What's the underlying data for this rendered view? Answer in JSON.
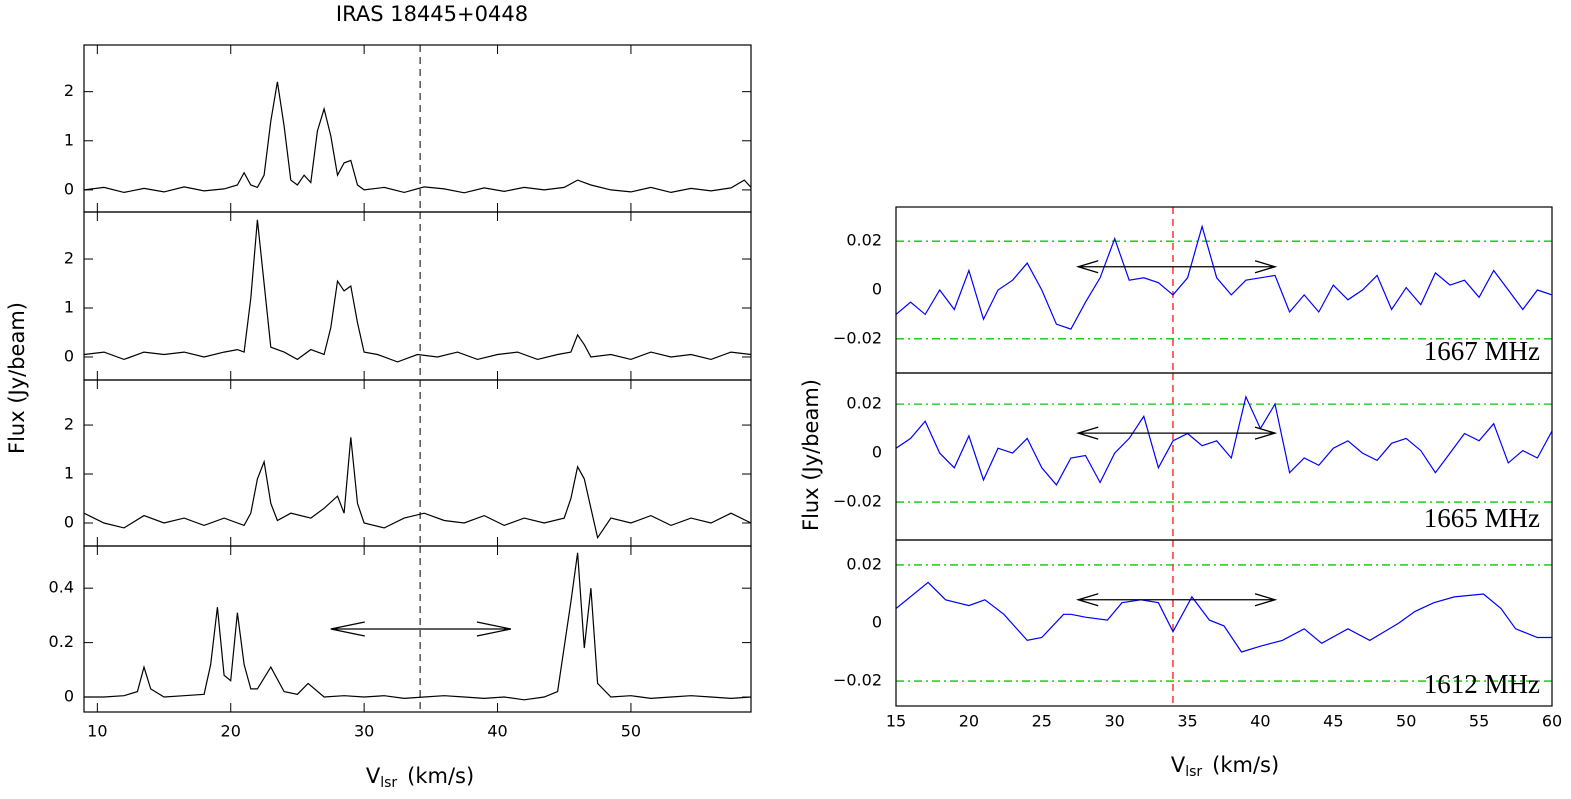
{
  "chart_data": [
    {
      "type": "line",
      "title": "IRAS 18445+0448",
      "xlabel": {
        "text": "V",
        "sub": "lsr",
        "unit": "(km/s)"
      },
      "ylabel": "Flux (Jy/beam)",
      "xlim": [
        9,
        59
      ],
      "xticks": [
        10,
        20,
        30,
        40,
        50
      ],
      "vline": 34.2,
      "color": "#000000",
      "vline_color": "#555555",
      "tick_marks": true,
      "panels": [
        {
          "ylim": [
            -0.45,
            2.95
          ],
          "yticks": [
            0,
            1,
            2
          ],
          "x": [
            9,
            10.5,
            12,
            13.5,
            15,
            16.5,
            18,
            19.5,
            20.5,
            21,
            21.5,
            22,
            22.5,
            23,
            23.5,
            24,
            24.5,
            25,
            25.5,
            26,
            26.5,
            27,
            27.5,
            28,
            28.5,
            29,
            29.5,
            30,
            31.5,
            33,
            34.5,
            36,
            37.5,
            39,
            40.5,
            42,
            43.5,
            45,
            46,
            47,
            48.5,
            50,
            51.5,
            53,
            54.5,
            56,
            57.5,
            58.5,
            59
          ],
          "values": [
            0.0,
            0.05,
            -0.05,
            0.03,
            -0.04,
            0.06,
            -0.02,
            0.02,
            0.1,
            0.35,
            0.1,
            0.05,
            0.3,
            1.4,
            2.2,
            1.3,
            0.2,
            0.1,
            0.3,
            0.15,
            1.2,
            1.65,
            1.1,
            0.3,
            0.55,
            0.6,
            0.1,
            0.0,
            0.05,
            -0.05,
            0.06,
            0.02,
            -0.06,
            0.04,
            -0.03,
            0.05,
            0.0,
            0.05,
            0.2,
            0.1,
            0.0,
            -0.04,
            0.05,
            -0.05,
            0.03,
            -0.02,
            0.04,
            0.2,
            0.05
          ]
        },
        {
          "ylim": [
            -0.47,
            2.96
          ],
          "yticks": [
            0,
            1,
            2
          ],
          "x": [
            9,
            10.5,
            12,
            13.5,
            15,
            16.5,
            18,
            19.5,
            20.5,
            21,
            21.5,
            22,
            22.5,
            23,
            24,
            25,
            26,
            27,
            27.5,
            28,
            28.5,
            29,
            29.5,
            30,
            31,
            32.5,
            34,
            35.5,
            37,
            38.5,
            40,
            41.5,
            43,
            44.5,
            45.5,
            46,
            46.5,
            47,
            48.5,
            50,
            51.5,
            53,
            54.5,
            56,
            57.5,
            59
          ],
          "values": [
            0.05,
            0.1,
            -0.05,
            0.1,
            0.05,
            0.1,
            0.0,
            0.1,
            0.15,
            0.1,
            1.2,
            2.8,
            1.5,
            0.2,
            0.1,
            -0.05,
            0.15,
            0.05,
            0.6,
            1.55,
            1.35,
            1.45,
            0.7,
            0.1,
            0.05,
            -0.1,
            0.05,
            0.0,
            0.1,
            -0.05,
            0.05,
            0.1,
            -0.05,
            0.05,
            0.1,
            0.45,
            0.25,
            0.0,
            0.05,
            -0.05,
            0.1,
            0.0,
            0.05,
            -0.05,
            0.1,
            0.05
          ]
        },
        {
          "ylim": [
            -0.47,
            2.92
          ],
          "yticks": [
            0,
            1,
            2
          ],
          "x": [
            9,
            10.5,
            12,
            13.5,
            15,
            16.5,
            18,
            19.5,
            21,
            21.5,
            22,
            22.5,
            23,
            23.5,
            24.5,
            26,
            27,
            28,
            28.5,
            29,
            29.5,
            30,
            31.5,
            33,
            34.5,
            36,
            37.5,
            39,
            40.5,
            42,
            43.5,
            45,
            45.5,
            46,
            46.5,
            47,
            47.5,
            48.5,
            50,
            51.5,
            53,
            54.5,
            56,
            57.5,
            59
          ],
          "values": [
            0.2,
            0.0,
            -0.1,
            0.15,
            0.0,
            0.1,
            -0.05,
            0.1,
            -0.05,
            0.2,
            0.9,
            1.25,
            0.4,
            0.05,
            0.2,
            0.1,
            0.3,
            0.55,
            0.2,
            1.75,
            0.4,
            0.0,
            -0.1,
            0.1,
            0.2,
            0.05,
            0.0,
            0.15,
            -0.05,
            0.1,
            0.0,
            0.1,
            0.5,
            1.15,
            0.9,
            0.3,
            -0.3,
            0.1,
            0.0,
            0.15,
            -0.05,
            0.1,
            0.0,
            0.2,
            0.0
          ]
        },
        {
          "ylim": [
            -0.055,
            0.555
          ],
          "yticks": [
            0,
            0.2,
            0.4
          ],
          "range": [
            27.5,
            41
          ],
          "x": [
            9,
            10.5,
            12,
            13,
            13.5,
            14,
            15,
            16.5,
            18,
            18.5,
            19,
            19.5,
            20,
            20.5,
            21,
            21.5,
            22,
            23,
            24,
            25,
            25.8,
            27,
            28.5,
            30,
            31.5,
            33,
            34.5,
            36,
            37.5,
            39,
            40.5,
            42,
            43.5,
            44.5,
            45.5,
            46,
            46.5,
            47,
            47.5,
            48.5,
            50,
            51.5,
            53,
            54.5,
            56,
            57.5,
            59
          ],
          "values": [
            0.0,
            0.0,
            0.005,
            0.02,
            0.11,
            0.03,
            0.0,
            0.005,
            0.01,
            0.12,
            0.33,
            0.08,
            0.06,
            0.31,
            0.12,
            0.03,
            0.03,
            0.11,
            0.02,
            0.01,
            0.05,
            0.0,
            0.005,
            0.0,
            0.005,
            -0.005,
            0.0,
            0.005,
            0.0,
            -0.005,
            0.0,
            -0.01,
            0.0,
            0.02,
            0.35,
            0.53,
            0.18,
            0.4,
            0.05,
            0.0,
            0.005,
            -0.005,
            0.0,
            0.005,
            0.0,
            -0.005,
            0.0
          ]
        }
      ]
    },
    {
      "type": "line",
      "xlabel": {
        "text": "V",
        "sub": "lsr",
        "unit": "(km/s)"
      },
      "ylabel": "Flux (Jy/beam)",
      "xlim": [
        15,
        60
      ],
      "xticks": [
        15,
        20,
        25,
        30,
        35,
        40,
        45,
        50,
        55,
        60
      ],
      "vline": 34,
      "color": "#0000ff",
      "vline_color": "#ff3333",
      "hline_color": "#00cc00",
      "tick_marks": false,
      "panels": [
        {
          "label": "1667 MHz",
          "ylim": [
            -0.034,
            0.034
          ],
          "yticks": [
            {
              "value": -0.02,
              "label": "−0.02"
            },
            0,
            0.02
          ],
          "hlines": [
            -0.02,
            0.02
          ],
          "range": [
            27.5,
            41
          ],
          "x": [
            15,
            16,
            17,
            18,
            19,
            20,
            21,
            22,
            23,
            24,
            25,
            26,
            27,
            28,
            29,
            30,
            31,
            32,
            33,
            34,
            35,
            36,
            37,
            38,
            39,
            40,
            41,
            42,
            43,
            44,
            45,
            46,
            47,
            48,
            49,
            50,
            51,
            52,
            53,
            54,
            55,
            56,
            57,
            58,
            59,
            60
          ],
          "values": [
            -0.01,
            -0.005,
            -0.01,
            0.0,
            -0.008,
            0.008,
            -0.012,
            0.0,
            0.004,
            0.011,
            0.0,
            -0.014,
            -0.016,
            -0.005,
            0.005,
            0.021,
            0.004,
            0.005,
            0.003,
            -0.002,
            0.005,
            0.026,
            0.005,
            -0.002,
            0.004,
            0.005,
            0.006,
            -0.009,
            -0.002,
            -0.009,
            0.002,
            -0.004,
            0.0,
            0.006,
            -0.008,
            0.001,
            -0.006,
            0.007,
            0.002,
            0.004,
            -0.003,
            0.008,
            0.0,
            -0.008,
            0.0,
            -0.002
          ]
        },
        {
          "label": "1665 MHz",
          "ylim": [
            -0.0355,
            0.0327
          ],
          "yticks": [
            {
              "value": -0.02,
              "label": "−0.02"
            },
            0,
            0.02
          ],
          "hlines": [
            -0.02,
            0.02
          ],
          "range": [
            27.5,
            41
          ],
          "x": [
            15,
            16,
            17,
            18,
            19,
            20,
            21,
            22,
            23,
            24,
            25,
            26,
            27,
            28,
            29,
            30,
            31,
            32,
            33,
            34,
            35,
            36,
            37,
            38,
            39,
            40,
            41,
            42,
            43,
            44,
            45,
            46,
            47,
            48,
            49,
            50,
            51,
            52,
            53,
            54,
            55,
            56,
            57,
            58,
            59,
            60
          ],
          "values": [
            0.002,
            0.006,
            0.013,
            0.0,
            -0.006,
            0.007,
            -0.011,
            0.002,
            0.0,
            0.006,
            -0.006,
            -0.013,
            -0.002,
            -0.001,
            -0.012,
            0.0,
            0.006,
            0.015,
            -0.006,
            0.005,
            0.008,
            0.003,
            0.005,
            -0.002,
            0.023,
            0.01,
            0.02,
            -0.008,
            -0.002,
            -0.005,
            0.002,
            0.005,
            0.0,
            -0.003,
            0.004,
            0.006,
            0.001,
            -0.008,
            0.0,
            0.008,
            0.005,
            0.012,
            -0.004,
            0.001,
            -0.002,
            0.009
          ]
        },
        {
          "label": "1612 MHz",
          "ylim": [
            -0.0286,
            0.0286
          ],
          "yticks": [
            {
              "value": -0.02,
              "label": "−0.02"
            },
            0,
            0.02
          ],
          "hlines": [
            -0.02,
            0.02
          ],
          "range": [
            27.5,
            41
          ],
          "x": [
            15,
            17.2,
            18.4,
            20,
            21.1,
            22.4,
            24,
            25,
            26.5,
            27,
            28,
            29.5,
            30.5,
            31.8,
            33,
            34,
            35.3,
            36.5,
            37.5,
            38.7,
            40,
            41.5,
            43,
            44.2,
            46,
            47.5,
            49.5,
            50.6,
            51.9,
            53.3,
            55.3,
            56.5,
            57.5,
            59,
            60
          ],
          "values": [
            0.005,
            0.014,
            0.008,
            0.006,
            0.008,
            0.003,
            -0.006,
            -0.005,
            0.003,
            0.003,
            0.002,
            0.001,
            0.007,
            0.008,
            0.007,
            -0.003,
            0.009,
            0.001,
            -0.001,
            -0.01,
            -0.008,
            -0.006,
            -0.002,
            -0.007,
            -0.002,
            -0.006,
            0.0,
            0.004,
            0.007,
            0.009,
            0.01,
            0.005,
            -0.002,
            -0.005,
            -0.005
          ]
        }
      ]
    }
  ]
}
